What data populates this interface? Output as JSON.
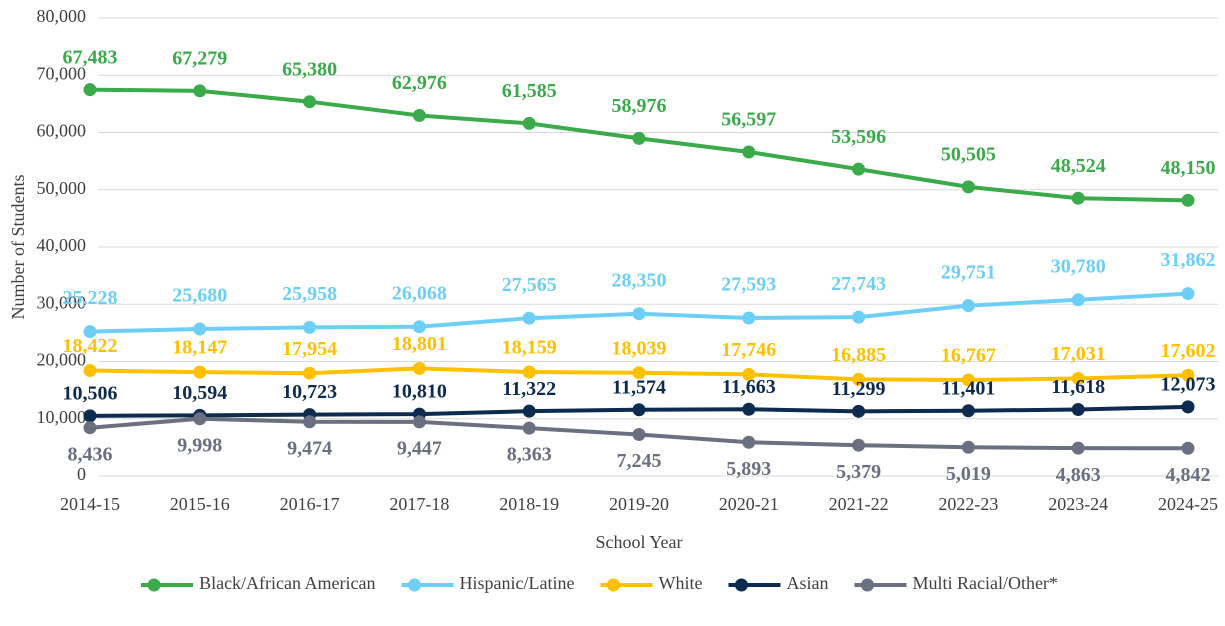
{
  "chart_data": {
    "type": "line",
    "x_label": "School Year",
    "y_label": "Number of Students",
    "categories": [
      "2014-15",
      "2015-16",
      "2016-17",
      "2017-18",
      "2018-19",
      "2019-20",
      "2020-21",
      "2021-22",
      "2022-23",
      "2023-24",
      "2024-25"
    ],
    "series": [
      {
        "name": "Black/African American",
        "color": "#3aaa4a",
        "values": [
          67483,
          67279,
          65380,
          62976,
          61585,
          58976,
          56597,
          53596,
          50505,
          48524,
          48150
        ],
        "value_labels": [
          "67,483",
          "67,279",
          "65,380",
          "62,976",
          "61,585",
          "58,976",
          "56,597",
          "53,596",
          "50,505",
          "48,524",
          "48,150"
        ]
      },
      {
        "name": "Hispanic/Latine",
        "color": "#6ecff6",
        "values": [
          25228,
          25680,
          25958,
          26068,
          27565,
          28350,
          27593,
          27743,
          29751,
          30780,
          31862
        ],
        "value_labels": [
          "25,228",
          "25,680",
          "25,958",
          "26,068",
          "27,565",
          "28,350",
          "27,593",
          "27,743",
          "29,751",
          "30,780",
          "31,862"
        ]
      },
      {
        "name": "White",
        "color": "#ffc000",
        "values": [
          18422,
          18147,
          17954,
          18801,
          18159,
          18039,
          17746,
          16885,
          16767,
          17031,
          17602
        ],
        "value_labels": [
          "18,422",
          "18,147",
          "17,954",
          "18,801",
          "18,159",
          "18,039",
          "17,746",
          "16,885",
          "16,767",
          "17,031",
          "17,602"
        ]
      },
      {
        "name": "Asian",
        "color": "#0d2b4e",
        "values": [
          10506,
          10594,
          10723,
          10810,
          11322,
          11574,
          11663,
          11299,
          11401,
          11618,
          12073
        ],
        "value_labels": [
          "10,506",
          "10,594",
          "10,723",
          "10,810",
          "11,322",
          "11,574",
          "11,663",
          "11,299",
          "11,401",
          "11,618",
          "12,073"
        ]
      },
      {
        "name": "Multi Racial/Other*",
        "color": "#6b7080",
        "values": [
          8436,
          9998,
          9474,
          9447,
          8363,
          7245,
          5893,
          5379,
          5019,
          4863,
          4842
        ],
        "value_labels": [
          "8,436",
          "9,998",
          "9,474",
          "9,447",
          "8,363",
          "7,245",
          "5,893",
          "5,379",
          "5,019",
          "4,863",
          "4,842"
        ]
      }
    ],
    "ylim": [
      0,
      80000
    ],
    "yticks": [
      0,
      {
        "value": 10000,
        "label": "10,000"
      },
      {
        "value": 20000,
        "label": "20,000"
      },
      {
        "value": 30000,
        "label": "30,000"
      },
      {
        "value": 40000,
        "label": "40,000"
      },
      {
        "value": 50000,
        "label": "50,000"
      },
      {
        "value": 60000,
        "label": "60,000"
      },
      {
        "value": 70000,
        "label": "70,000"
      },
      {
        "value": 80000,
        "label": "80,000"
      }
    ],
    "grid": true,
    "legend": "bottom"
  }
}
